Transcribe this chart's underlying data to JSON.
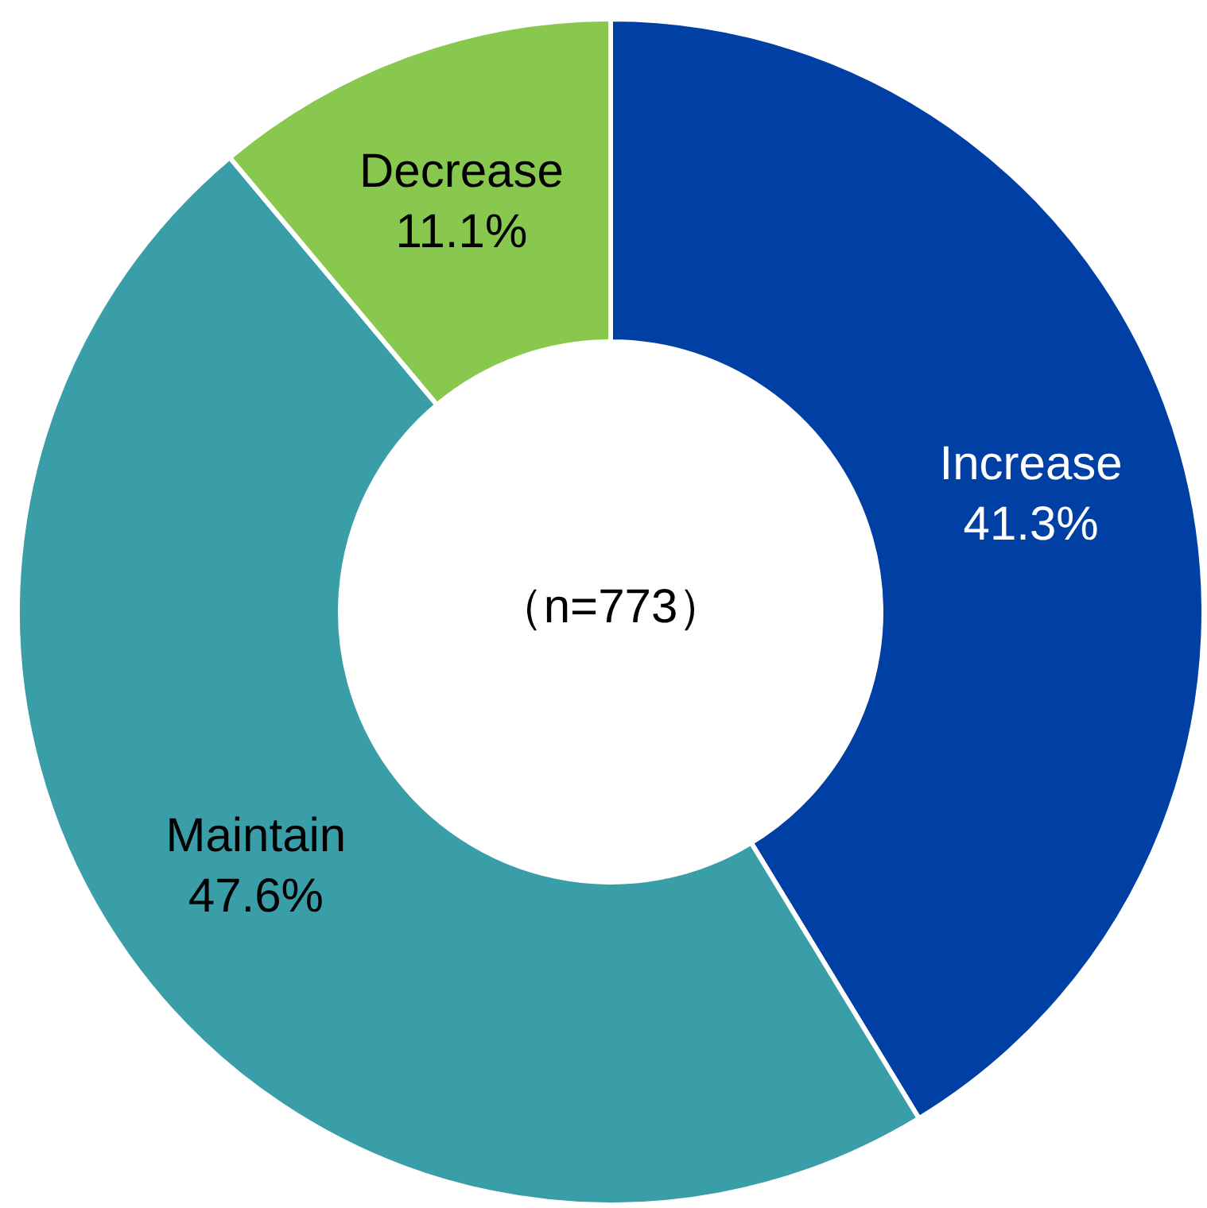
{
  "chart_data": {
    "type": "donut",
    "categories": [
      "Increase",
      "Maintain",
      "Decrease"
    ],
    "values": [
      41.3,
      47.6,
      11.1
    ],
    "colors": [
      "#003fa3",
      "#3a9ea8",
      "#88c84e"
    ],
    "value_labels": [
      "41.3%",
      "47.6%",
      "11.1%"
    ],
    "legend": false,
    "annotations": [
      "（n=773）"
    ]
  }
}
